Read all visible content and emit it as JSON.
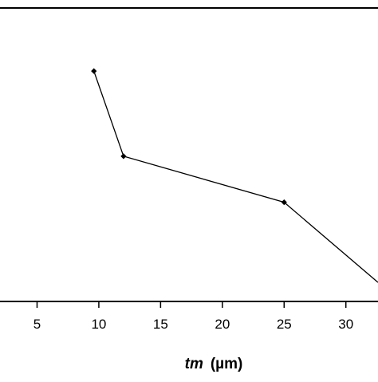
{
  "chart_data": {
    "type": "line",
    "title": "",
    "xlabel": "tm (µm)",
    "xlabel_parts": {
      "symbol": "tm",
      "unit": "(µm)"
    },
    "ylabel": "",
    "x_ticks": [
      "5",
      "10",
      "15",
      "20",
      "25",
      "30"
    ],
    "xlim": [
      2.0,
      32.6
    ],
    "ylim": [
      0,
      1
    ],
    "grid": false,
    "legend": "none",
    "series": [
      {
        "x": [
          9.6,
          12.0,
          25.0,
          32.6
        ],
        "y": [
          0.785,
          0.495,
          0.338,
          0.065
        ],
        "color": "#000000",
        "marker": "diamond"
      }
    ]
  }
}
